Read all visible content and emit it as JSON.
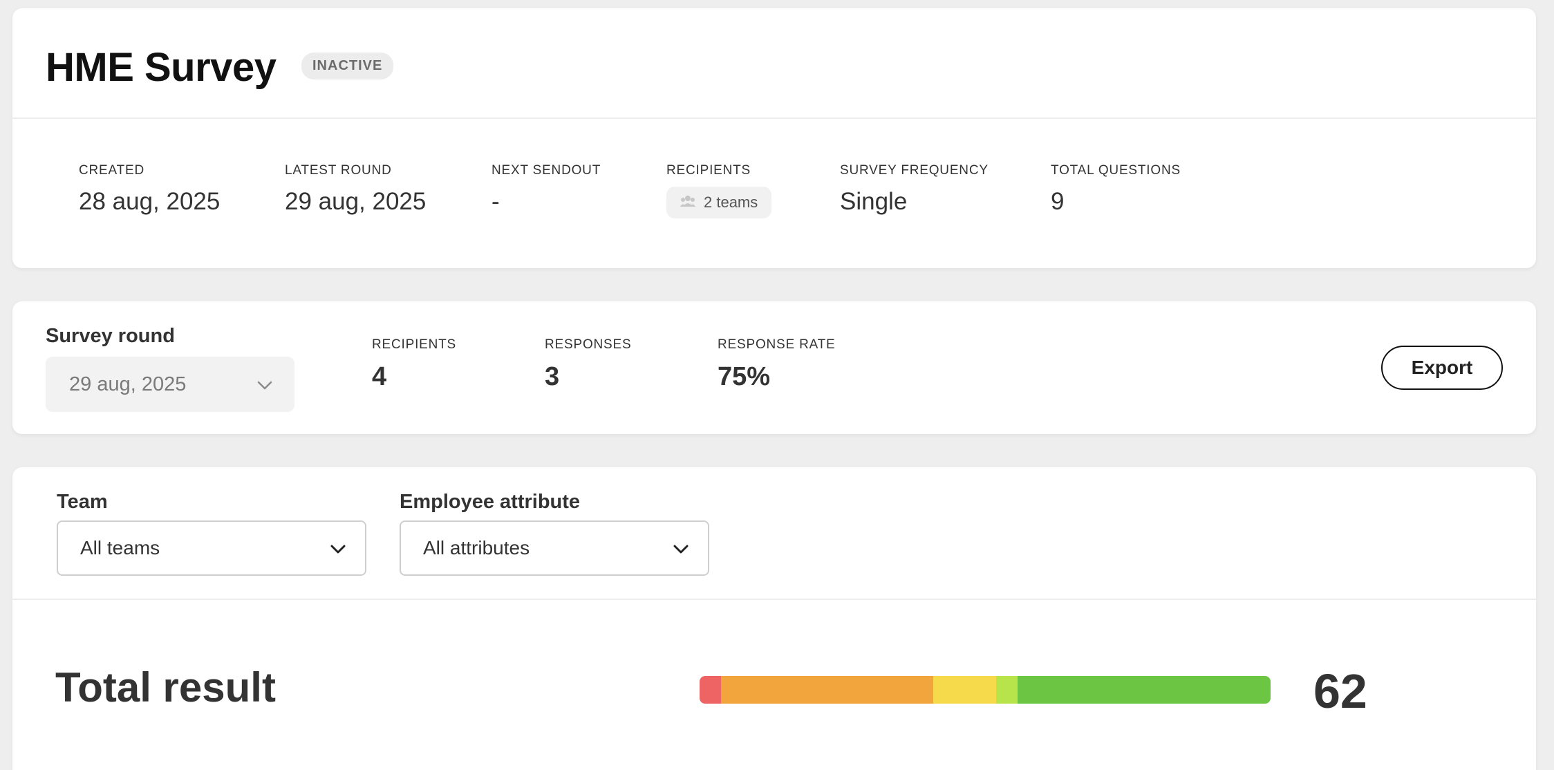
{
  "header": {
    "title": "HME Survey",
    "status": "INACTIVE",
    "meta": [
      {
        "label": "CREATED",
        "value": "28 aug, 2025"
      },
      {
        "label": "LATEST ROUND",
        "value": "29 aug, 2025"
      },
      {
        "label": "NEXT SENDOUT",
        "value": "-"
      },
      {
        "label": "RECIPIENTS",
        "value": "2 teams",
        "icon": "team-icon"
      },
      {
        "label": "SURVEY FREQUENCY",
        "value": "Single"
      },
      {
        "label": "TOTAL QUESTIONS",
        "value": "9"
      }
    ]
  },
  "round": {
    "label": "Survey round",
    "selected": "29 aug, 2025",
    "stats": [
      {
        "label": "RECIPIENTS",
        "value": "4"
      },
      {
        "label": "RESPONSES",
        "value": "3"
      },
      {
        "label": "RESPONSE RATE",
        "value": "75%"
      }
    ],
    "export_label": "Export"
  },
  "filters": {
    "team": {
      "label": "Team",
      "selected": "All teams"
    },
    "attribute": {
      "label": "Employee attribute",
      "selected": "All attributes"
    }
  },
  "result": {
    "title": "Total result",
    "score": "62",
    "distribution": [
      {
        "band": "very-low",
        "percent": 3.7,
        "color": "#ee6464"
      },
      {
        "band": "low",
        "percent": 37.2,
        "color": "#f2a53c"
      },
      {
        "band": "neutral",
        "percent": 11.1,
        "color": "#f7d94c"
      },
      {
        "band": "good",
        "percent": 3.7,
        "color": "#b6e44a"
      },
      {
        "band": "very-good",
        "percent": 44.3,
        "color": "#6cc644"
      }
    ]
  }
}
